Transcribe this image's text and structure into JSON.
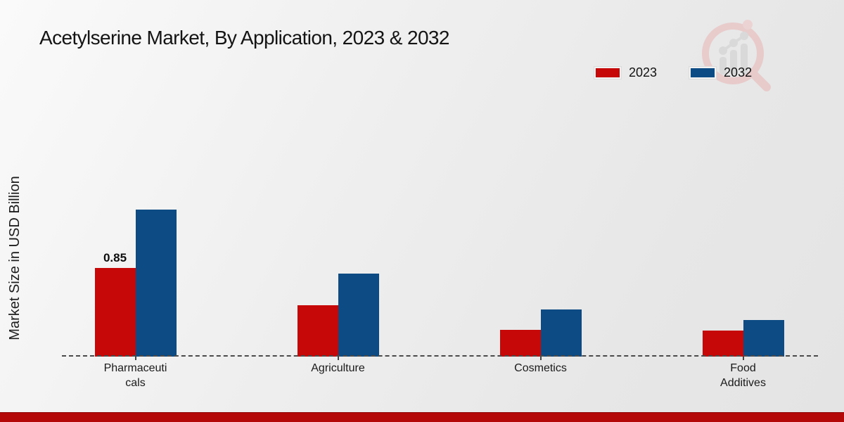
{
  "title": "Acetylserine Market, By Application, 2023 & 2032",
  "ylabel": "Market Size in USD Billion",
  "legend": [
    {
      "label": "2023",
      "color": "#c60808"
    },
    {
      "label": "2032",
      "color": "#0d4b85"
    }
  ],
  "colors": {
    "series_2023": "#c60808",
    "series_2032": "#0d4b85",
    "footer_accent": "#b40808",
    "baseline": "#4a4a4a",
    "background": "#ececec"
  },
  "watermark_icon": "magnifier-bar-chart-logo",
  "chart_data": {
    "type": "bar",
    "title": "Acetylserine Market, By Application, 2023 & 2032",
    "xlabel": "",
    "ylabel": "Market Size in USD Billion",
    "categories": [
      "Pharmaceuticals",
      "Agriculture",
      "Cosmetics",
      "Food Additives"
    ],
    "category_display": [
      "Pharmaceuti\ncals",
      "Agriculture",
      "Cosmetics",
      "Food\nAdditives"
    ],
    "series": [
      {
        "name": "2023",
        "color": "#c60808",
        "values": [
          0.85,
          0.49,
          0.26,
          0.25
        ],
        "value_labels": [
          "0.85",
          null,
          null,
          null
        ]
      },
      {
        "name": "2032",
        "color": "#0d4b85",
        "values": [
          1.41,
          0.8,
          0.45,
          0.35
        ],
        "value_labels": [
          null,
          null,
          null,
          null
        ]
      }
    ],
    "ylim": [
      0,
      1.6
    ],
    "grid": false,
    "y_axis_ticks_visible": false,
    "baseline_style": "dashed",
    "legend_position": "top-right"
  }
}
